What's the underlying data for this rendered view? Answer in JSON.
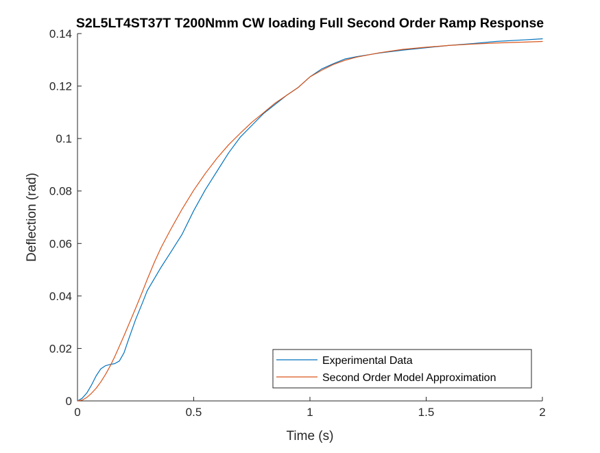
{
  "chart_data": {
    "type": "line",
    "title": "S2L5LT4ST37T T200Nmm CW loading Full Second Order Ramp Response",
    "xlabel": "Time (s)",
    "ylabel": "Deflection (rad)",
    "xlim": [
      0,
      2
    ],
    "ylim": [
      0,
      0.14
    ],
    "xticks": [
      0,
      0.5,
      1,
      1.5,
      2
    ],
    "xtick_labels": [
      "0",
      "0.5",
      "1",
      "1.5",
      "2"
    ],
    "yticks": [
      0,
      0.02,
      0.04,
      0.06,
      0.08,
      0.1,
      0.12,
      0.14
    ],
    "ytick_labels": [
      "0",
      "0.02",
      "0.04",
      "0.06",
      "0.08",
      "0.1",
      "0.12",
      "0.14"
    ],
    "grid": false,
    "box": false,
    "legend": {
      "placement": "bottom-right"
    },
    "series": [
      {
        "name": "Experimental Data",
        "color": "#0072BD",
        "x": [
          0,
          0.02,
          0.04,
          0.06,
          0.08,
          0.1,
          0.12,
          0.14,
          0.16,
          0.18,
          0.2,
          0.22,
          0.25,
          0.28,
          0.3,
          0.33,
          0.36,
          0.4,
          0.45,
          0.5,
          0.55,
          0.6,
          0.65,
          0.7,
          0.75,
          0.8,
          0.85,
          0.9,
          0.95,
          1.0,
          1.05,
          1.1,
          1.15,
          1.2,
          1.3,
          1.4,
          1.5,
          1.6,
          1.7,
          1.8,
          1.9,
          2.0
        ],
        "y": [
          0,
          0.001,
          0.003,
          0.006,
          0.0095,
          0.0122,
          0.0134,
          0.0139,
          0.0142,
          0.0152,
          0.0183,
          0.0235,
          0.031,
          0.0375,
          0.042,
          0.0465,
          0.051,
          0.0565,
          0.0635,
          0.0725,
          0.0805,
          0.0875,
          0.0945,
          0.1005,
          0.105,
          0.1095,
          0.113,
          0.1165,
          0.1195,
          0.1235,
          0.1265,
          0.1285,
          0.1303,
          0.1312,
          0.1326,
          0.1337,
          0.1346,
          0.1355,
          0.1362,
          0.137,
          0.1375,
          0.138
        ]
      },
      {
        "name": "Second Order Model Approximation",
        "color": "#D95319",
        "x": [
          0,
          0.02,
          0.04,
          0.06,
          0.08,
          0.1,
          0.12,
          0.14,
          0.16,
          0.18,
          0.2,
          0.22,
          0.25,
          0.28,
          0.3,
          0.33,
          0.36,
          0.4,
          0.45,
          0.5,
          0.55,
          0.6,
          0.65,
          0.7,
          0.75,
          0.8,
          0.85,
          0.9,
          0.95,
          1.0,
          1.05,
          1.1,
          1.15,
          1.2,
          1.3,
          1.4,
          1.5,
          1.6,
          1.7,
          1.8,
          1.9,
          2.0
        ],
        "y": [
          0,
          0.0003,
          0.0013,
          0.0029,
          0.0048,
          0.0072,
          0.01,
          0.0132,
          0.0168,
          0.0208,
          0.0248,
          0.029,
          0.0353,
          0.0418,
          0.0463,
          0.0527,
          0.0585,
          0.0652,
          0.0731,
          0.0803,
          0.0867,
          0.0925,
          0.0976,
          0.102,
          0.1062,
          0.1098,
          0.1135,
          0.1165,
          0.1195,
          0.1235,
          0.126,
          0.1282,
          0.1298,
          0.131,
          0.1327,
          0.134,
          0.1348,
          0.1355,
          0.136,
          0.1364,
          0.1367,
          0.137
        ]
      }
    ]
  }
}
